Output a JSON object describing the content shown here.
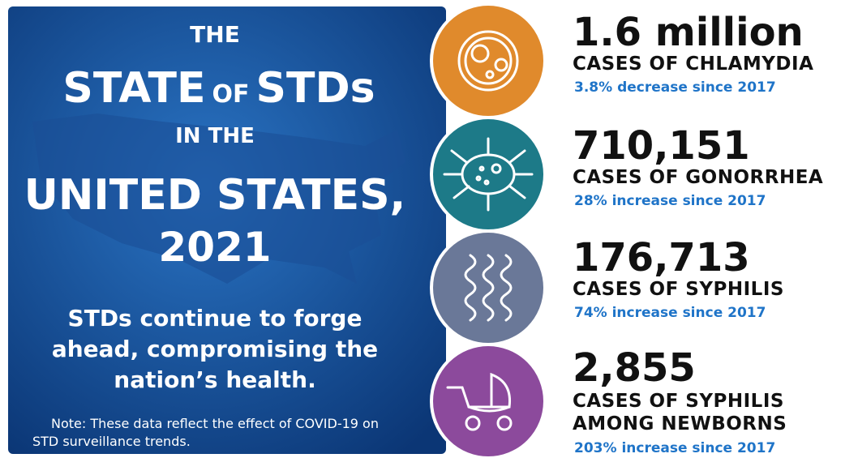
{
  "title": {
    "lines": [
      "THE",
      "STATE",
      "OF",
      "STDs",
      "IN THE",
      "UNITED STATES,",
      "2021"
    ]
  },
  "subtitle": {
    "lines": [
      "STDs continue to forge",
      "ahead, compromising the",
      "nation’s health."
    ]
  },
  "note": {
    "lines": [
      "Note: These data reflect the effect of COVID-19 on",
      "STD surveillance trends."
    ]
  },
  "stats": [
    {
      "number": "1.6 million",
      "label": [
        "CASES OF CHLAMYDIA"
      ],
      "change": "3.8% decrease since 2017"
    },
    {
      "number": "710,151",
      "label": [
        "CASES OF GONORRHEA"
      ],
      "change": "28% increase since 2017"
    },
    {
      "number": "176,713",
      "label": [
        "CASES OF SYPHILIS"
      ],
      "change": "74% increase since 2017"
    },
    {
      "number": "2,855",
      "label": [
        "CASES OF SYPHILIS",
        "AMONG NEWBORNS"
      ],
      "change": "203% increase since 2017"
    }
  ]
}
